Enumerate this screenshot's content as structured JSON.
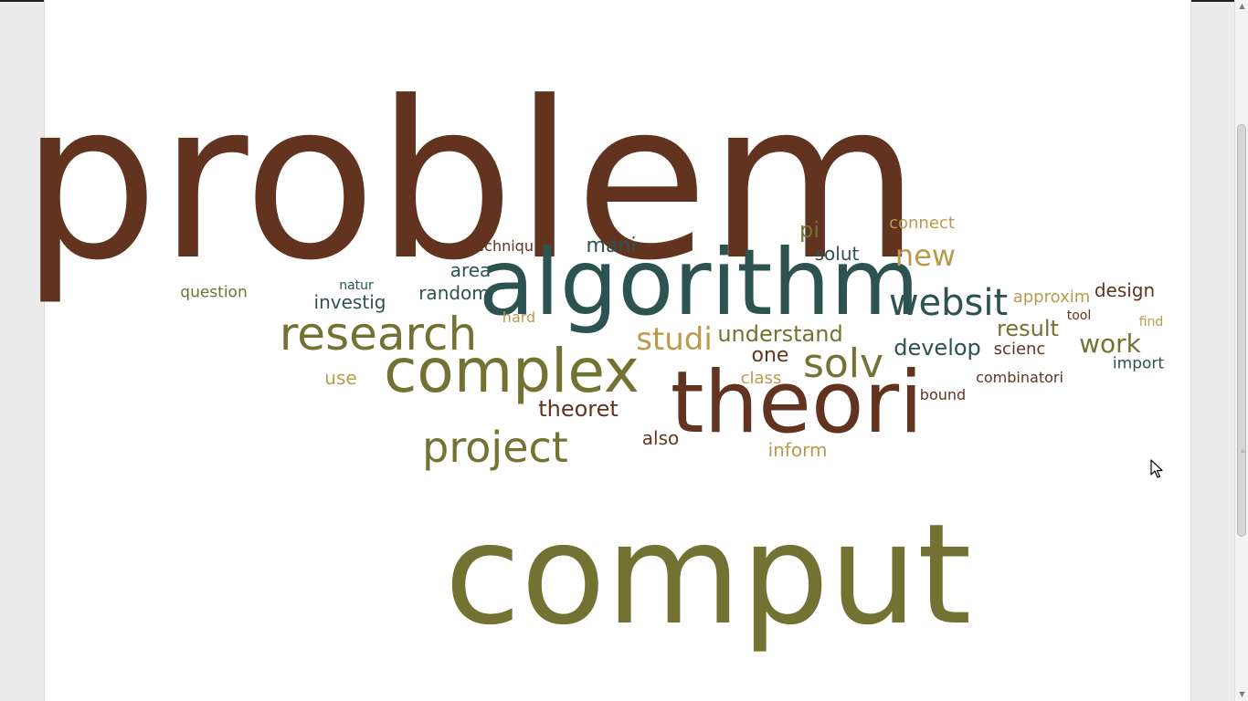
{
  "colors": {
    "brown": "#62331f",
    "olive": "#737233",
    "teal": "#2c5350",
    "tan": "#bc9a4c",
    "page_background": "#ffffff",
    "window_background": "#ececec"
  },
  "word_cloud": {
    "words": [
      {
        "text": "problem",
        "color": "brown"
      },
      {
        "text": "comput",
        "color": "olive"
      },
      {
        "text": "algorithm",
        "color": "teal"
      },
      {
        "text": "theori",
        "color": "brown"
      },
      {
        "text": "complex",
        "color": "olive"
      },
      {
        "text": "research",
        "color": "olive"
      },
      {
        "text": "project",
        "color": "olive"
      },
      {
        "text": "websit",
        "color": "teal"
      },
      {
        "text": "solv",
        "color": "olive"
      },
      {
        "text": "new",
        "color": "tan"
      },
      {
        "text": "studi",
        "color": "tan"
      },
      {
        "text": "understand",
        "color": "olive"
      },
      {
        "text": "theoret",
        "color": "brown"
      },
      {
        "text": "develop",
        "color": "teal"
      },
      {
        "text": "result",
        "color": "olive"
      },
      {
        "text": "work",
        "color": "olive"
      },
      {
        "text": "mani",
        "color": "teal"
      },
      {
        "text": "random",
        "color": "teal"
      },
      {
        "text": "one",
        "color": "brown"
      },
      {
        "text": "inform",
        "color": "tan"
      },
      {
        "text": "investig",
        "color": "teal"
      },
      {
        "text": "area",
        "color": "teal"
      },
      {
        "text": "pi",
        "color": "olive"
      },
      {
        "text": "solut",
        "color": "teal"
      },
      {
        "text": "connect",
        "color": "tan"
      },
      {
        "text": "design",
        "color": "brown"
      },
      {
        "text": "approxim",
        "color": "tan"
      },
      {
        "text": "scienc",
        "color": "brown"
      },
      {
        "text": "import",
        "color": "teal"
      },
      {
        "text": "also",
        "color": "brown"
      },
      {
        "text": "use",
        "color": "tan"
      },
      {
        "text": "class",
        "color": "tan"
      },
      {
        "text": "combinatori",
        "color": "brown"
      },
      {
        "text": "bound",
        "color": "brown"
      },
      {
        "text": "question",
        "color": "olive"
      },
      {
        "text": "hard",
        "color": "tan"
      },
      {
        "text": "techniqu",
        "color": "brown"
      },
      {
        "text": "natur",
        "color": "teal"
      },
      {
        "text": "tool",
        "color": "brown"
      },
      {
        "text": "find",
        "color": "tan"
      }
    ]
  }
}
